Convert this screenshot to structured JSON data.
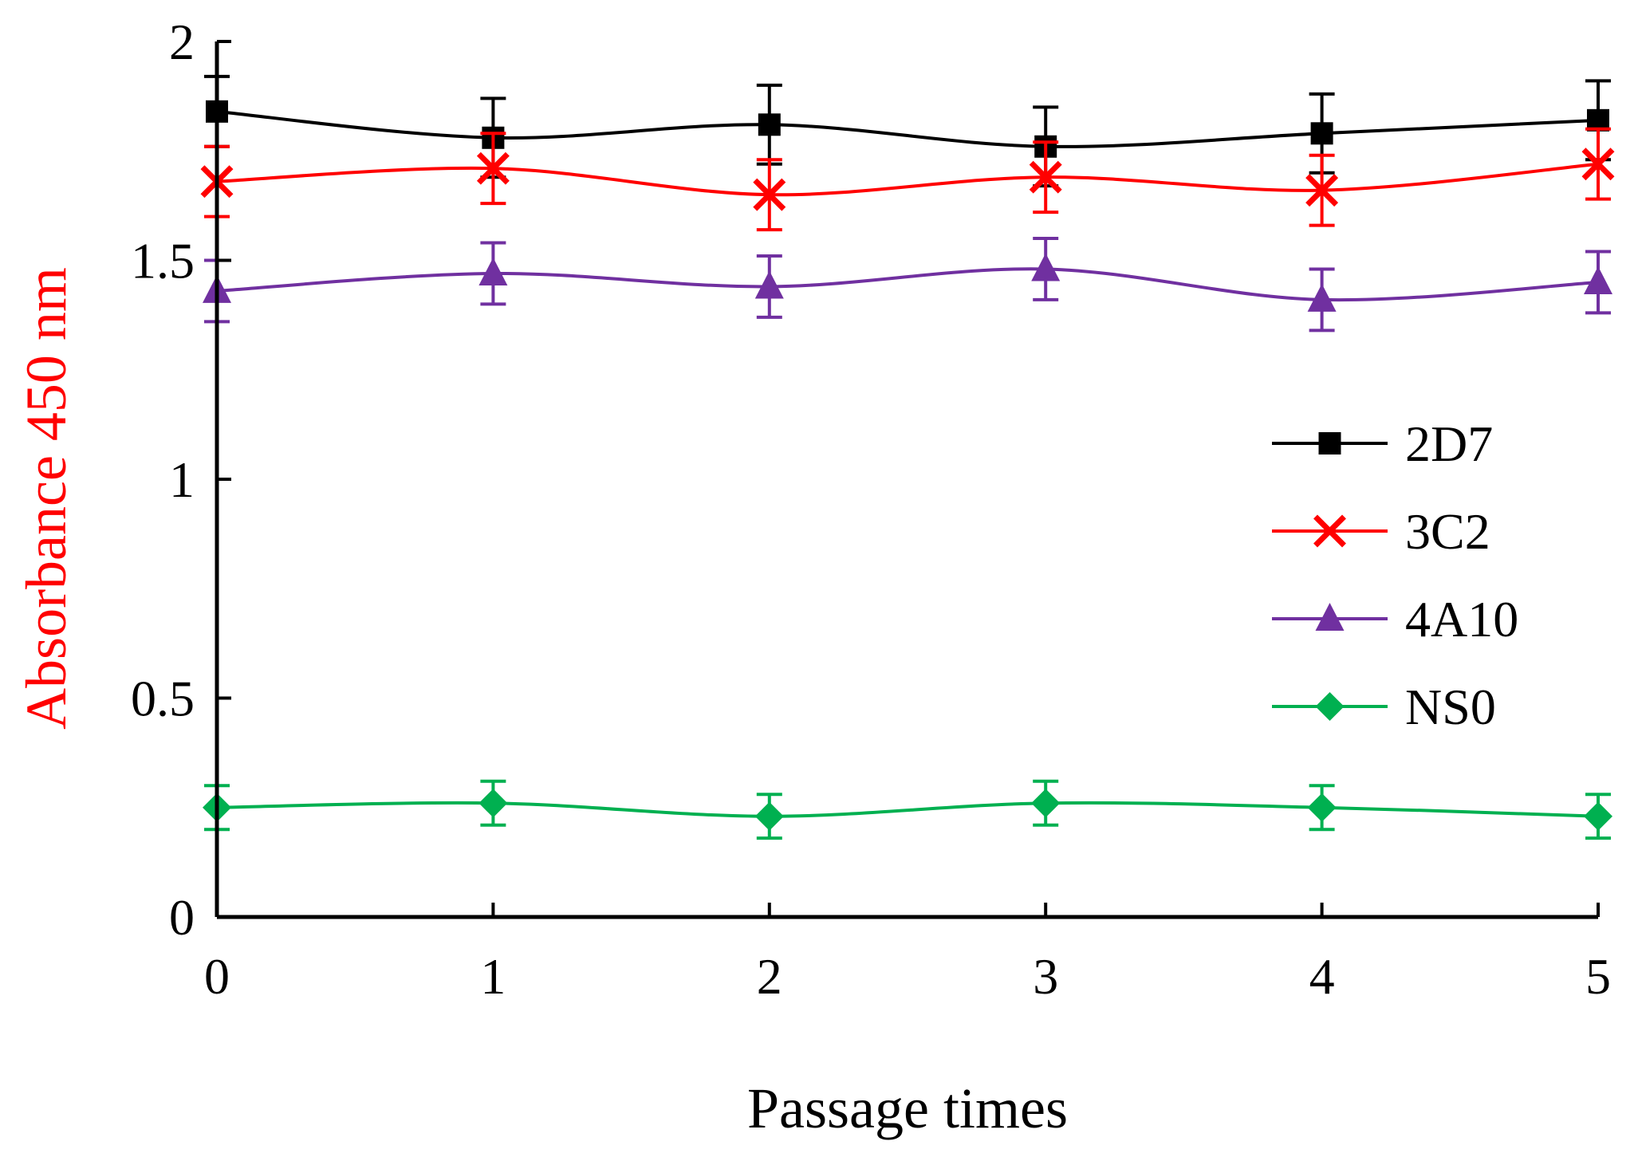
{
  "chart_data": {
    "type": "line",
    "title": "",
    "xlabel": "Passage times",
    "ylabel": "Absorbance 450 nm",
    "ylabel_color": "#ff0000",
    "x": [
      0,
      1,
      2,
      3,
      4,
      5
    ],
    "x_tick_labels": [
      "0",
      "1",
      "2",
      "3",
      "4",
      "5"
    ],
    "xlim": [
      0,
      5
    ],
    "ylim": [
      0,
      2
    ],
    "y_ticks": [
      0,
      0.5,
      1,
      1.5,
      2
    ],
    "y_tick_labels": [
      "0",
      "0.5",
      "1",
      "1.5",
      "2"
    ],
    "grid": false,
    "legend_position": "right-center",
    "series": [
      {
        "name": "2D7",
        "color": "#000000",
        "marker": "square",
        "values": [
          1.84,
          1.78,
          1.81,
          1.76,
          1.79,
          1.82
        ],
        "errors": [
          0.08,
          0.09,
          0.09,
          0.09,
          0.09,
          0.09
        ]
      },
      {
        "name": "3C2",
        "color": "#ff0000",
        "marker": "x",
        "values": [
          1.68,
          1.71,
          1.65,
          1.69,
          1.66,
          1.72
        ],
        "errors": [
          0.08,
          0.08,
          0.08,
          0.08,
          0.08,
          0.08
        ]
      },
      {
        "name": "4A10",
        "color": "#7030a0",
        "marker": "triangle",
        "values": [
          1.43,
          1.47,
          1.44,
          1.48,
          1.41,
          1.45
        ],
        "errors": [
          0.07,
          0.07,
          0.07,
          0.07,
          0.07,
          0.07
        ]
      },
      {
        "name": "NS0",
        "color": "#00b050",
        "marker": "diamond",
        "values": [
          0.25,
          0.26,
          0.23,
          0.26,
          0.25,
          0.23
        ],
        "errors": [
          0.05,
          0.05,
          0.05,
          0.05,
          0.05,
          0.05
        ]
      }
    ]
  }
}
